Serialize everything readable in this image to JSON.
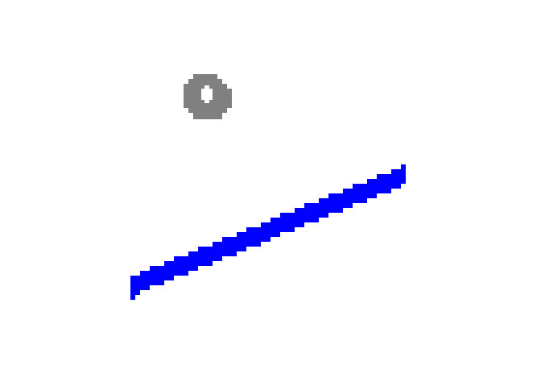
{
  "scene": {
    "background": "#ffffff",
    "ball": {
      "name": "ring",
      "color": "#808080",
      "hole_color": "#ffffff"
    },
    "platform": {
      "name": "sloped-line",
      "color": "#0000ff"
    }
  }
}
